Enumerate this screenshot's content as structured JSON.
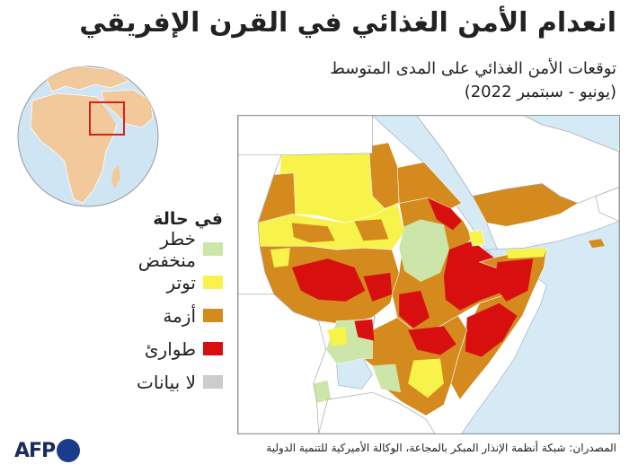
{
  "title": "انعدام الأمن الغذائي في القرن الإفريقي",
  "subtitle_line1": "توقعات الأمن الغذائي على المدى المتوسط",
  "subtitle_line2": "(يونيو - سبتمبر 2022)",
  "legend": {
    "title": "في حالة",
    "items": [
      {
        "label": "خطر منخفض",
        "color": "#cbe6a8"
      },
      {
        "label": "توتر",
        "color": "#f7f34a"
      },
      {
        "label": "أزمة",
        "color": "#d48a1c"
      },
      {
        "label": "طوارئ",
        "color": "#d80f0f"
      },
      {
        "label": "لا بيانات",
        "color": "#cccccc"
      }
    ]
  },
  "source": "المصدران: شبكة أنظمة الإنذار المبكر بالمجاعة، الوكالة الأميركية للتنمية الدولية",
  "logo_text": "AFP",
  "colors": {
    "water": "#d6eaf6",
    "land": "#ffffff",
    "border": "#999999",
    "locator": "#d62020",
    "globe_land": "#f2c99a",
    "globe_sea": "#cfe5f3"
  }
}
